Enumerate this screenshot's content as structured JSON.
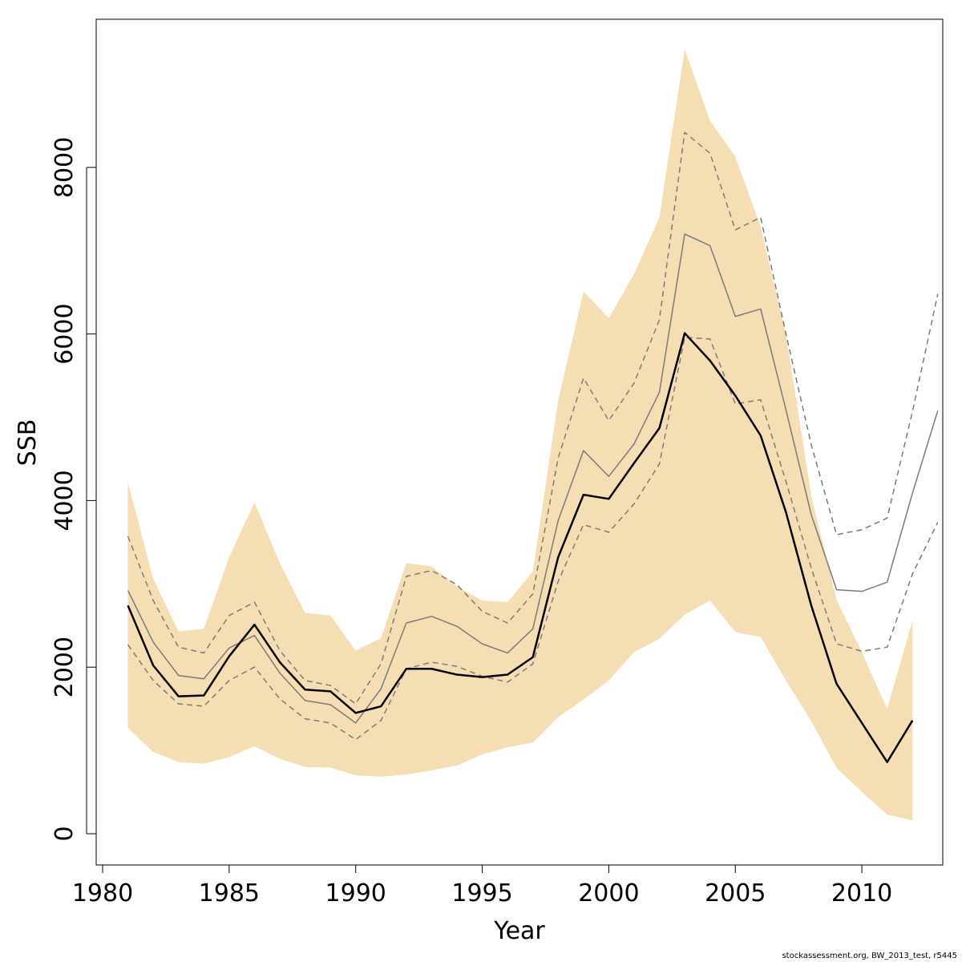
{
  "chart_data": {
    "type": "line",
    "xlabel": "Year",
    "ylabel": "SSB",
    "xlim": [
      1981,
      2013
    ],
    "ylim": [
      0,
      9400
    ],
    "x_ticks": [
      1980,
      1985,
      1990,
      1995,
      2000,
      2005,
      2010
    ],
    "y_ticks": [
      0,
      2000,
      4000,
      6000,
      8000
    ],
    "grid": false,
    "band": {
      "color": "#f5deb3",
      "x": [
        1981,
        1982,
        1983,
        1984,
        1985,
        1986,
        1987,
        1988,
        1989,
        1990,
        1991,
        1992,
        1993,
        1994,
        1995,
        1996,
        1997,
        1998,
        1999,
        2000,
        2001,
        2002,
        2003,
        2004,
        2005,
        2006,
        2007,
        2008,
        2009,
        2010,
        2011,
        2012
      ],
      "upper": [
        4220,
        3060,
        2430,
        2460,
        3320,
        3980,
        3250,
        2650,
        2620,
        2200,
        2350,
        3250,
        3210,
        2970,
        2800,
        2780,
        3150,
        5200,
        6510,
        6190,
        6720,
        7400,
        9420,
        8560,
        8130,
        7290,
        5990,
        4060,
        2810,
        2180,
        1500,
        2560
      ],
      "lower": [
        1270,
        980,
        860,
        840,
        920,
        1050,
        900,
        800,
        795,
        700,
        685,
        710,
        760,
        820,
        950,
        1040,
        1095,
        1400,
        1610,
        1840,
        2180,
        2340,
        2630,
        2800,
        2420,
        2360,
        1840,
        1350,
        790,
        500,
        230,
        160
      ]
    },
    "series": [
      {
        "style": "solid-black",
        "color": "#000000",
        "x": [
          1981,
          1982,
          1983,
          1984,
          1985,
          1986,
          1987,
          1988,
          1989,
          1990,
          1991,
          1992,
          1993,
          1994,
          1995,
          1996,
          1997,
          1998,
          1999,
          2000,
          2001,
          2002,
          2003,
          2004,
          2005,
          2006,
          2007,
          2008,
          2009,
          2010,
          2011,
          2012
        ],
        "values": [
          2740,
          2020,
          1650,
          1660,
          2130,
          2510,
          2060,
          1730,
          1710,
          1450,
          1530,
          1980,
          1980,
          1910,
          1880,
          1910,
          2120,
          3320,
          4070,
          4020,
          4450,
          4870,
          6010,
          5680,
          5260,
          4780,
          3860,
          2740,
          1800,
          1330,
          860,
          1360
        ]
      },
      {
        "style": "solid-grey",
        "color": "#7a7a7a",
        "x": [
          1981,
          1982,
          1983,
          1984,
          1985,
          1986,
          1987,
          1988,
          1989,
          1990,
          1991,
          1992,
          1993,
          1994,
          1995,
          1996,
          1997,
          1998,
          1999,
          2000,
          2001,
          2002,
          2003,
          2004,
          2005,
          2006,
          2007,
          2008,
          2009,
          2010,
          2011,
          2012,
          2013
        ],
        "values": [
          2920,
          2300,
          1900,
          1860,
          2230,
          2380,
          1930,
          1600,
          1550,
          1330,
          1740,
          2530,
          2610,
          2490,
          2280,
          2170,
          2460,
          3760,
          4600,
          4290,
          4680,
          5300,
          7200,
          7060,
          6210,
          6300,
          5090,
          3830,
          2930,
          2910,
          3020,
          4090,
          5080
        ]
      },
      {
        "style": "dashed-grey",
        "color": "#7a7a7a",
        "x": [
          1981,
          1982,
          1983,
          1984,
          1985,
          1986,
          1987,
          1988,
          1989,
          1990,
          1991,
          1992,
          1993,
          1994,
          1995,
          1996,
          1997,
          1998,
          1999,
          2000,
          2001,
          2002,
          2003,
          2004,
          2005,
          2006,
          2007,
          2008,
          2009,
          2010,
          2011,
          2012,
          2013
        ],
        "values": [
          3570,
          2800,
          2240,
          2170,
          2620,
          2780,
          2200,
          1840,
          1780,
          1560,
          2040,
          3090,
          3160,
          2990,
          2670,
          2530,
          2880,
          4510,
          5470,
          4960,
          5410,
          6170,
          8420,
          8170,
          7250,
          7400,
          6000,
          4670,
          3590,
          3650,
          3790,
          5070,
          6480
        ]
      },
      {
        "style": "dashed-grey",
        "color": "#7a7a7a",
        "x": [
          1981,
          1982,
          1983,
          1984,
          1985,
          1986,
          1987,
          1988,
          1989,
          1990,
          1991,
          1992,
          1993,
          1994,
          1995,
          1996,
          1997,
          1998,
          1999,
          2000,
          2001,
          2002,
          2003,
          2004,
          2005,
          2006,
          2007,
          2008,
          2009,
          2010,
          2011,
          2012,
          2013
        ],
        "values": [
          2270,
          1840,
          1560,
          1530,
          1840,
          2000,
          1620,
          1380,
          1330,
          1130,
          1360,
          1980,
          2060,
          2010,
          1890,
          1820,
          2040,
          3030,
          3710,
          3620,
          3960,
          4440,
          5960,
          5940,
          5160,
          5210,
          4230,
          3190,
          2280,
          2190,
          2240,
          3120,
          3740
        ]
      }
    ]
  },
  "footer": {
    "note": "stockassessment.org, BW_2013_test, r5445"
  }
}
